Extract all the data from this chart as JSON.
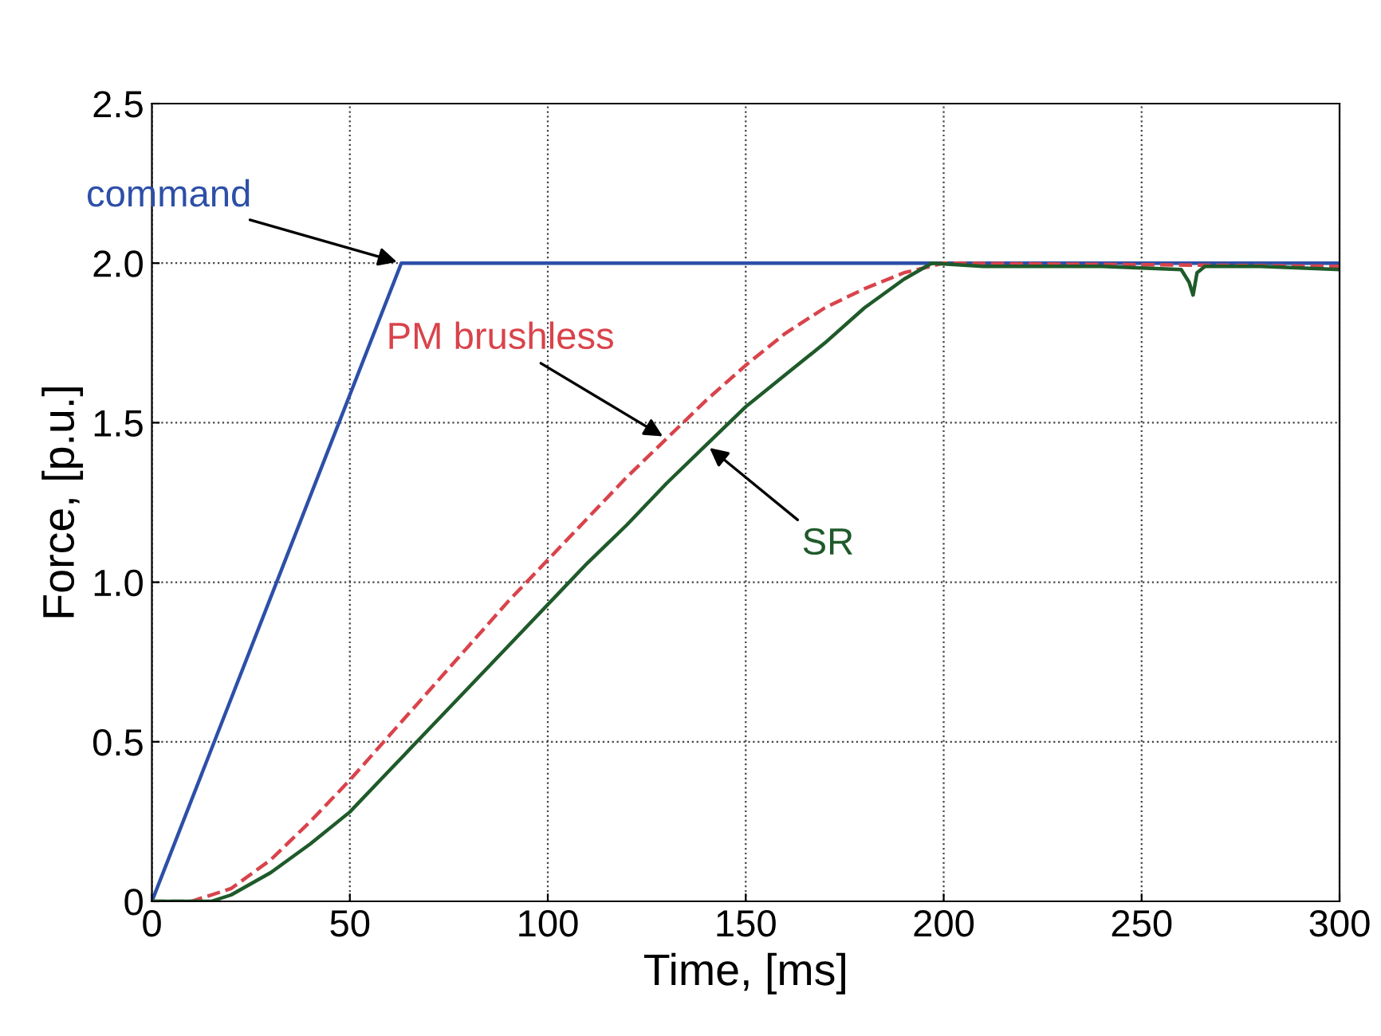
{
  "chart_data": {
    "type": "line",
    "xlabel": "Time, [ms]",
    "ylabel": "Force, [p.u.]",
    "xlim": [
      0,
      300
    ],
    "ylim": [
      0,
      2.5
    ],
    "xticks": [
      0,
      50,
      100,
      150,
      200,
      250,
      300
    ],
    "yticks": [
      0,
      {
        "value": 0.5,
        "label": "0.5"
      },
      {
        "value": 1,
        "label": "1.0"
      },
      {
        "value": 1.5,
        "label": "1.5"
      },
      {
        "value": 2,
        "label": "2.0"
      },
      {
        "value": 2.5,
        "label": "2.5"
      }
    ],
    "grid": true,
    "series": [
      {
        "name": "command",
        "color": "#2d4fa8",
        "line_style": "solid",
        "x": [
          0,
          63,
          300
        ],
        "values": [
          0,
          2.0,
          2.0
        ]
      },
      {
        "name": "PM brushless",
        "color": "#d9434b",
        "line_style": "dashed",
        "x": [
          0,
          10,
          20,
          30,
          40,
          50,
          60,
          70,
          80,
          90,
          100,
          110,
          120,
          130,
          140,
          150,
          160,
          170,
          180,
          190,
          200,
          300
        ],
        "values": [
          0,
          0,
          0.04,
          0.13,
          0.25,
          0.38,
          0.52,
          0.66,
          0.8,
          0.94,
          1.07,
          1.2,
          1.33,
          1.45,
          1.57,
          1.68,
          1.78,
          1.86,
          1.92,
          1.97,
          2.0,
          1.99
        ]
      },
      {
        "name": "SR",
        "color": "#1f5a2a",
        "line_style": "solid",
        "x": [
          0,
          15,
          20,
          30,
          40,
          50,
          60,
          70,
          80,
          90,
          100,
          110,
          120,
          130,
          140,
          150,
          160,
          170,
          180,
          190,
          197,
          210,
          240,
          260,
          262,
          263,
          264,
          266,
          280,
          300
        ],
        "values": [
          0,
          0,
          0.02,
          0.09,
          0.18,
          0.28,
          0.41,
          0.54,
          0.67,
          0.8,
          0.93,
          1.06,
          1.18,
          1.31,
          1.43,
          1.55,
          1.65,
          1.75,
          1.86,
          1.95,
          2.0,
          1.99,
          1.99,
          1.98,
          1.94,
          1.9,
          1.97,
          1.99,
          1.99,
          1.98
        ]
      }
    ]
  }
}
